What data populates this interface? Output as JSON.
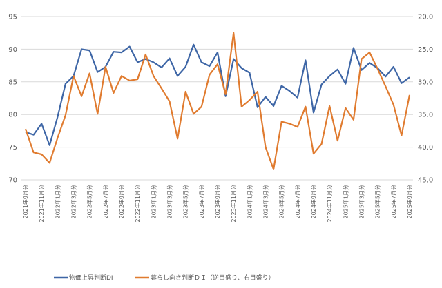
{
  "chart_data": {
    "type": "line",
    "title": "",
    "x_tick_labels": [
      "2021年9月分",
      "2021年11月分",
      "2022年1月分",
      "2022年3月分",
      "2022年5月分",
      "2022年7月分",
      "2022年9月分",
      "2022年11月分",
      "2023年1月分",
      "2023年3月分",
      "2023年5月分",
      "2023年7月分",
      "2023年9月分",
      "2023年11月分",
      "2024年1月分",
      "2024年3月分",
      "2024年5月分",
      "2024年7月分",
      "2024年9月分",
      "2024年11月分",
      "2025年1月分",
      "2025年3月分",
      "2025年5月分",
      "2025年7月分",
      "2025年9月分"
    ],
    "x_tick_every": 2,
    "left_axis": {
      "ylim": [
        70,
        95
      ],
      "ticks": [
        "70",
        "75",
        "80",
        "85",
        "90",
        "95"
      ],
      "inverted": false
    },
    "right_axis": {
      "ylim": [
        20,
        45
      ],
      "ticks": [
        "20.0",
        "25.0",
        "30.0",
        "35.0",
        "40.0",
        "45.0"
      ],
      "inverted": true
    },
    "grid": "horizontal",
    "legend_position": "bottom",
    "series": [
      {
        "name": "物価上昇判断DI",
        "axis": "left",
        "color": "#3e66a6",
        "values": [
          77.3,
          76.9,
          78.6,
          75.3,
          79.6,
          84.7,
          85.9,
          90.0,
          89.8,
          86.5,
          87.3,
          89.6,
          89.5,
          90.4,
          88.0,
          88.5,
          88.0,
          87.2,
          88.6,
          85.9,
          87.3,
          90.7,
          88.0,
          87.4,
          89.5,
          82.8,
          88.5,
          87.1,
          86.4,
          81.1,
          82.7,
          81.3,
          84.4,
          83.6,
          82.6,
          88.3,
          80.3,
          84.6,
          85.9,
          86.9,
          84.7,
          90.2,
          86.8,
          87.9,
          87.1,
          85.8,
          87.3,
          84.8,
          85.7
        ]
      },
      {
        "name": "暮らし向き判断ＤＩ（逆目盛り、右目盛り）",
        "axis": "right",
        "color": "#e07b2f",
        "values": [
          37.2,
          40.8,
          41.1,
          42.4,
          38.6,
          35.1,
          29.1,
          32.2,
          28.7,
          34.9,
          27.7,
          31.7,
          29.1,
          29.8,
          29.6,
          25.8,
          29.1,
          31.0,
          33.0,
          38.7,
          31.5,
          34.9,
          33.8,
          28.9,
          27.3,
          31.9,
          22.5,
          33.8,
          32.8,
          31.5,
          40.0,
          43.4,
          36.1,
          36.4,
          36.9,
          33.8,
          41.0,
          39.5,
          33.7,
          39.0,
          34.0,
          35.8,
          26.5,
          25.5,
          28.0,
          30.7,
          33.5,
          38.2,
          32.0
        ]
      }
    ]
  }
}
